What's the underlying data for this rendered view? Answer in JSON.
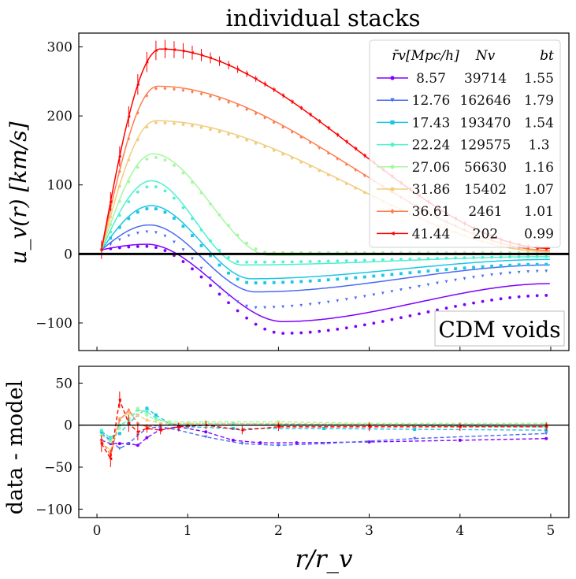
{
  "chart_data": [
    {
      "type": "line",
      "title": "individual stacks",
      "xlabel": "",
      "ylabel": "u_v(r) [km/s]",
      "xlim": [
        -0.2,
        5.2
      ],
      "ylim": [
        -140,
        320
      ],
      "xticks": [
        0,
        1,
        2,
        3,
        4,
        5
      ],
      "xtick_labels_visible": false,
      "yticks": [
        -100,
        0,
        100,
        200,
        300
      ],
      "ytick_labels": [
        "−100",
        "0",
        "100",
        "200",
        "300"
      ],
      "annotation": "CDM voids",
      "legend": {
        "position": "top-right",
        "headers": [
          "r̄v[Mpc/h]",
          "Nv",
          "bt"
        ],
        "rows": [
          [
            "8.57",
            "39714",
            "1.55"
          ],
          [
            "12.76",
            "162646",
            "1.79"
          ],
          [
            "17.43",
            "193470",
            "1.54"
          ],
          [
            "22.24",
            "129575",
            "1.3"
          ],
          [
            "27.06",
            "56630",
            "1.16"
          ],
          [
            "31.86",
            "15402",
            "1.07"
          ],
          [
            "36.61",
            "2461",
            "1.01"
          ],
          [
            "41.44",
            "202",
            "0.99"
          ]
        ]
      },
      "series": [
        {
          "name": "8.57",
          "color": "#8000ff",
          "marker": "circle",
          "peak_r": 0.55,
          "peak_u": 14,
          "min_r": 2.05,
          "min_u": -98,
          "end_u": -43,
          "data_peak_u": 11,
          "data_min_u": -115,
          "data_end_u": -60
        },
        {
          "name": "12.76",
          "color": "#4a6bf5",
          "marker": "triangle-down",
          "peak_r": 0.58,
          "peak_u": 42,
          "min_r": 1.75,
          "min_u": -55,
          "end_u": -16,
          "data_peak_u": 32,
          "data_min_u": -78,
          "data_end_u": -25
        },
        {
          "name": "17.43",
          "color": "#1ac7e5",
          "marker": "square",
          "peak_r": 0.6,
          "peak_u": 70,
          "min_r": 1.7,
          "min_u": -36,
          "end_u": -8,
          "data_peak_u": 66,
          "data_min_u": -42,
          "data_end_u": -15
        },
        {
          "name": "22.24",
          "color": "#4cf2ce",
          "marker": "circle",
          "peak_r": 0.6,
          "peak_u": 106,
          "min_r": 1.6,
          "min_u": -16,
          "end_u": -4,
          "data_peak_u": 98,
          "data_min_u": -12,
          "data_end_u": -4
        },
        {
          "name": "27.06",
          "color": "#a4f89e",
          "marker": "circle",
          "peak_r": 0.62,
          "peak_u": 145,
          "min_r": 1.9,
          "min_u": -2,
          "end_u": 1,
          "data_peak_u": 140,
          "data_min_u": 2,
          "data_end_u": 2
        },
        {
          "name": "31.86",
          "color": "#f0cd7f",
          "marker": "circle",
          "peak_r": 0.65,
          "peak_u": 193,
          "min_r": 5.0,
          "min_u": 3,
          "end_u": 3,
          "data_peak_u": 190,
          "data_min_u": 4,
          "data_end_u": 4
        },
        {
          "name": "36.61",
          "color": "#ff7e4f",
          "marker": "diamond",
          "peak_r": 0.67,
          "peak_u": 243,
          "min_r": 5.0,
          "min_u": 5,
          "end_u": 5,
          "data_peak_u": 240,
          "data_min_u": 6,
          "data_end_u": 6
        },
        {
          "name": "41.44",
          "color": "#ff0000",
          "marker": "triangle-left",
          "peak_r": 0.7,
          "peak_u": 297,
          "min_r": 5.0,
          "min_u": 8,
          "end_u": 8,
          "data_peak_u": 297,
          "data_min_u": 8,
          "data_end_u": 8
        }
      ]
    },
    {
      "type": "line",
      "title": "",
      "xlabel": "r/r_v",
      "ylabel": "data - model",
      "xlim": [
        -0.2,
        5.2
      ],
      "ylim": [
        -110,
        70
      ],
      "xticks": [
        0,
        1,
        2,
        3,
        4,
        5
      ],
      "xtick_labels": [
        "0",
        "1",
        "2",
        "3",
        "4",
        "5"
      ],
      "yticks": [
        -100,
        -50,
        0,
        50
      ],
      "ytick_labels": [
        "−100",
        "−50",
        "0",
        "50"
      ],
      "series": [
        {
          "name": "8.57",
          "color": "#8000ff",
          "points": [
            [
              0.05,
              -18
            ],
            [
              0.15,
              -22
            ],
            [
              0.25,
              -22
            ],
            [
              0.35,
              -22
            ],
            [
              0.45,
              -24
            ],
            [
              0.55,
              -15
            ],
            [
              0.7,
              -5
            ],
            [
              0.9,
              -2
            ],
            [
              1.2,
              -8
            ],
            [
              1.5,
              -18
            ],
            [
              1.8,
              -21
            ],
            [
              2.2,
              -21
            ],
            [
              3.0,
              -20
            ],
            [
              4.0,
              -18
            ],
            [
              4.95,
              -16
            ]
          ]
        },
        {
          "name": "12.76",
          "color": "#4a6bf5",
          "points": [
            [
              0.05,
              -10
            ],
            [
              0.15,
              -18
            ],
            [
              0.25,
              -28
            ],
            [
              0.35,
              -22
            ],
            [
              0.45,
              -12
            ],
            [
              0.55,
              -4
            ],
            [
              0.7,
              -2
            ],
            [
              0.9,
              -6
            ],
            [
              1.2,
              -14
            ],
            [
              1.6,
              -22
            ],
            [
              2.0,
              -24
            ],
            [
              2.5,
              -22
            ],
            [
              3.5,
              -16
            ],
            [
              4.95,
              -10
            ]
          ]
        },
        {
          "name": "17.43",
          "color": "#1ac7e5",
          "points": [
            [
              0.05,
              -8
            ],
            [
              0.15,
              -15
            ],
            [
              0.25,
              -10
            ],
            [
              0.35,
              2
            ],
            [
              0.45,
              12
            ],
            [
              0.55,
              20
            ],
            [
              0.65,
              12
            ],
            [
              0.8,
              2
            ],
            [
              1.0,
              -2
            ],
            [
              1.5,
              -4
            ],
            [
              2.5,
              -4
            ],
            [
              3.5,
              -5
            ],
            [
              4.95,
              -6
            ]
          ]
        },
        {
          "name": "22.24",
          "color": "#4cf2ce",
          "points": [
            [
              0.05,
              -6
            ],
            [
              0.15,
              -16
            ],
            [
              0.25,
              0
            ],
            [
              0.35,
              6
            ],
            [
              0.45,
              18
            ],
            [
              0.55,
              16
            ],
            [
              0.65,
              8
            ],
            [
              0.8,
              2
            ],
            [
              1.0,
              2
            ],
            [
              1.5,
              2
            ],
            [
              3.0,
              0
            ],
            [
              4.95,
              -2
            ]
          ]
        },
        {
          "name": "27.06",
          "color": "#a4f89e",
          "points": [
            [
              0.05,
              -12
            ],
            [
              0.15,
              -20
            ],
            [
              0.25,
              -4
            ],
            [
              0.35,
              8
            ],
            [
              0.45,
              20
            ],
            [
              0.55,
              12
            ],
            [
              0.65,
              6
            ],
            [
              0.8,
              4
            ],
            [
              1.2,
              4
            ],
            [
              2.0,
              4
            ],
            [
              3.0,
              2
            ],
            [
              4.95,
              2
            ]
          ]
        },
        {
          "name": "31.86",
          "color": "#f0cd7f",
          "points": [
            [
              0.05,
              -20
            ],
            [
              0.15,
              -30
            ],
            [
              0.25,
              8
            ],
            [
              0.35,
              14
            ],
            [
              0.45,
              12
            ],
            [
              0.55,
              6
            ],
            [
              0.7,
              2
            ],
            [
              1.0,
              2
            ],
            [
              2.0,
              2
            ],
            [
              3.0,
              1
            ],
            [
              4.95,
              0
            ]
          ]
        },
        {
          "name": "36.61",
          "color": "#ff7e4f",
          "points": [
            [
              0.05,
              -18
            ],
            [
              0.15,
              -36
            ],
            [
              0.25,
              6
            ],
            [
              0.35,
              18
            ],
            [
              0.45,
              2
            ],
            [
              0.55,
              -2
            ],
            [
              0.7,
              0
            ],
            [
              1.0,
              0
            ],
            [
              2.0,
              0
            ],
            [
              3.0,
              0
            ],
            [
              4.95,
              0
            ]
          ]
        },
        {
          "name": "41.44",
          "color": "#ff0000",
          "points": [
            [
              0.05,
              -22
            ],
            [
              0.15,
              -40
            ],
            [
              0.25,
              30
            ],
            [
              0.35,
              2
            ],
            [
              0.45,
              -8
            ],
            [
              0.55,
              -4
            ],
            [
              0.7,
              -6
            ],
            [
              0.9,
              -2
            ],
            [
              1.2,
              0
            ],
            [
              1.6,
              -6
            ],
            [
              2.0,
              -2
            ],
            [
              3.0,
              -2
            ],
            [
              4.0,
              -2
            ],
            [
              4.95,
              -2
            ]
          ]
        }
      ]
    }
  ]
}
